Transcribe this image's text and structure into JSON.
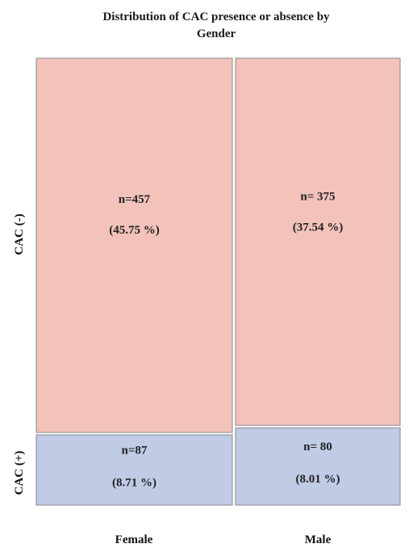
{
  "chart_data": {
    "type": "mosaic",
    "title_lines": [
      "Distribution of CAC presence or absence by",
      "Gender"
    ],
    "categories": [
      "Female",
      "Male"
    ],
    "row_labels": [
      "CAC (-)",
      "CAC (+)"
    ],
    "series": [
      {
        "name": "CAC (-)",
        "values": [
          457,
          375
        ],
        "labels": [
          "n=457",
          "n= 375"
        ],
        "percents": [
          "(45.75 %)",
          "(37.54 %)"
        ]
      },
      {
        "name": "CAC (+)",
        "values": [
          87,
          80
        ],
        "labels": [
          "n=87",
          "n= 80"
        ],
        "percents": [
          "(8.71 %)",
          "(8.01 %)"
        ]
      }
    ],
    "colors": {
      "negative": "#f2c2bb",
      "positive": "#c0cbe6",
      "border": "#8a8a8a"
    },
    "grid": false,
    "legend": "none"
  }
}
